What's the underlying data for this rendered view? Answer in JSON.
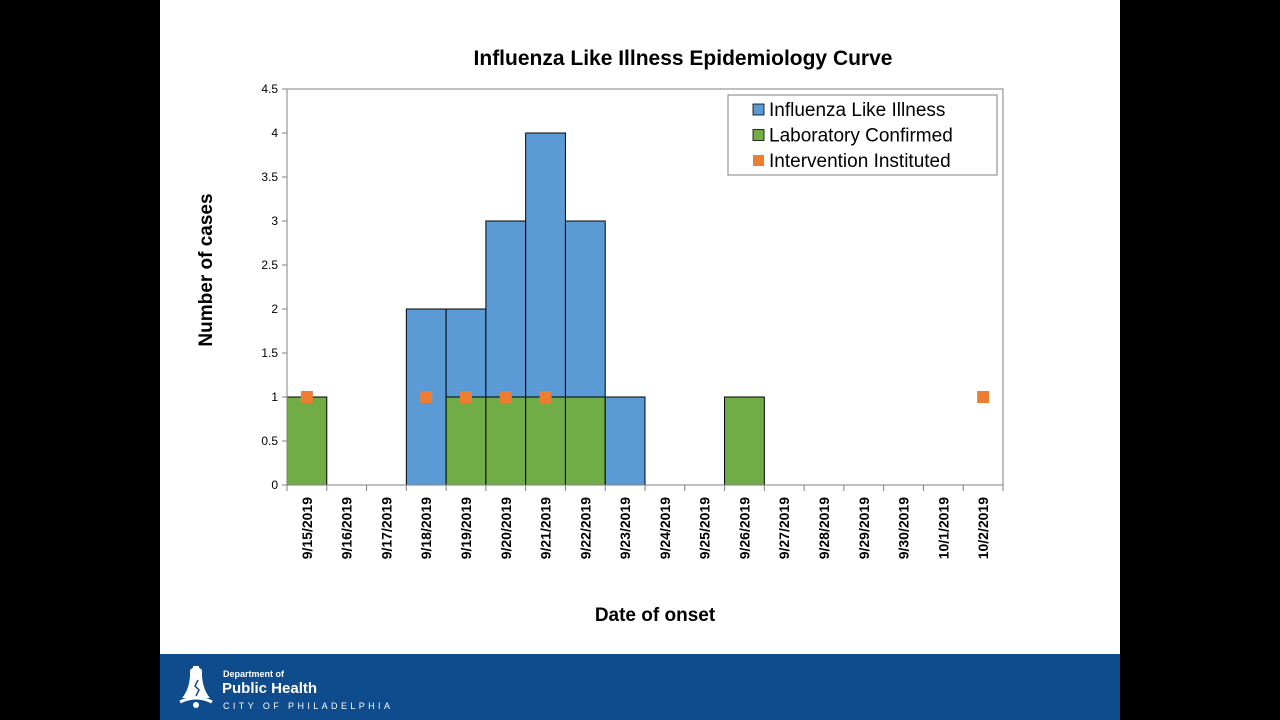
{
  "chart_data": {
    "type": "bar",
    "title": "Influenza Like Illness Epidemiology Curve",
    "xlabel": "Date of onset",
    "ylabel": "Number of cases",
    "ylim": [
      0,
      4.5
    ],
    "yticks": [
      "0",
      "0.5",
      "1",
      "1.5",
      "2",
      "2.5",
      "3",
      "3.5",
      "4",
      "4.5"
    ],
    "categories": [
      "9/15/2019",
      "9/16/2019",
      "9/17/2019",
      "9/18/2019",
      "9/19/2019",
      "9/20/2019",
      "9/21/2019",
      "9/22/2019",
      "9/23/2019",
      "9/24/2019",
      "9/25/2019",
      "9/26/2019",
      "9/27/2019",
      "9/28/2019",
      "9/29/2019",
      "9/30/2019",
      "10/1/2019",
      "10/2/2019"
    ],
    "series": [
      {
        "name": "Influenza Like Illness",
        "kind": "bar",
        "color": "#5b9bd5",
        "values": [
          0,
          0,
          0,
          2,
          1,
          2,
          3,
          2,
          1,
          0,
          0,
          0,
          0,
          0,
          0,
          0,
          0,
          0
        ]
      },
      {
        "name": "Laboratory Confirmed",
        "kind": "bar",
        "color": "#70ad47",
        "values": [
          1,
          0,
          0,
          0,
          1,
          1,
          1,
          1,
          0,
          0,
          0,
          1,
          0,
          0,
          0,
          0,
          0,
          0
        ]
      },
      {
        "name": "Intervention Instituted",
        "kind": "marker",
        "color": "#ed7d31",
        "values": [
          1,
          null,
          null,
          1,
          1,
          1,
          1,
          null,
          null,
          null,
          null,
          null,
          null,
          null,
          null,
          null,
          null,
          1
        ]
      }
    ],
    "stacking": "Laboratory Confirmed at bottom, Influenza Like Illness stacked on top",
    "grid": false,
    "legend_position": "top-right"
  },
  "footer": {
    "dept_label": "Department of",
    "org_name": "Public Health",
    "city_label": "CITY OF PHILADELPHIA",
    "background_color": "#0e4c8e",
    "logo_icon": "liberty-bell-icon"
  }
}
